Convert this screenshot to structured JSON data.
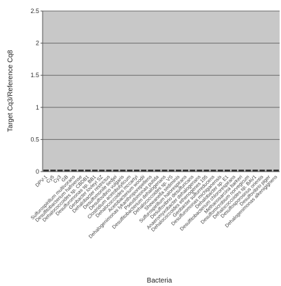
{
  "chart_data": {
    "type": "bar",
    "title": "",
    "xlabel": "Bacteria",
    "ylabel": "Target Cq3/Reference Cq8",
    "ylim": [
      0,
      2.5
    ],
    "yticks": [
      "0",
      "0.5",
      "1",
      "1.5",
      "2",
      "2.5"
    ],
    "grid": true,
    "plot_background": "#c8c8c8",
    "bar_color": "#2a2a2a",
    "categories": [
      "DPV-1",
      "Cy5",
      "Cy3",
      "GB",
      "Sulfurospirillum multivorans",
      "Desulfitobacterium hafniense",
      "Dehalococcoides sp. CBDB1",
      "Desulfuromonas sp. BB1",
      "Geobacter lovleyi SZ",
      "Dehalobacter restrictus",
      "Desulfomonile tiedjei",
      "Desulfovibrio vulgaris",
      "Clostridium acetobutylicum",
      "Dehalococcoides mccartyi",
      "Acetobacterium woodii",
      "Dehalogenimonas lykanthroporepellens",
      "Pseudomonas putida",
      "Desulfitobacterium dehalogenans",
      "Dehalococcoides sp. VS",
      "Shewanella sediminis",
      "Sulfurospirillum halorespirans",
      "Desulfovibrio desulfuricans",
      "Anaeromyxobacter dehalogenans",
      "Dehalococcoides ethenogenes 195",
      "Geobacter sulfurreducens",
      "Desulfuromonas michiganensis",
      "Dehalobacter sp. E1",
      "Desulfitobacterium chlororespirans",
      "Methanosarcina barkeri",
      "Desulfomicrobium norvegicum",
      "Dehalococcoides sp. BAV1",
      "Desulfosporosinus orientis",
      "Desulfovibrio piger",
      "Dehalogenimonas alkenigignens"
    ],
    "values": [
      0.03,
      0.03,
      0.03,
      0.03,
      0.03,
      0.03,
      0.03,
      0.03,
      0.03,
      0.03,
      0.03,
      0.03,
      0.03,
      0.03,
      0.03,
      0.03,
      0.03,
      0.03,
      0.03,
      0.03,
      0.03,
      0.03,
      0.03,
      0.03,
      0.03,
      0.03,
      0.03,
      0.03,
      0.03,
      0.03,
      0.03,
      0.03,
      0.03,
      0.03
    ]
  }
}
